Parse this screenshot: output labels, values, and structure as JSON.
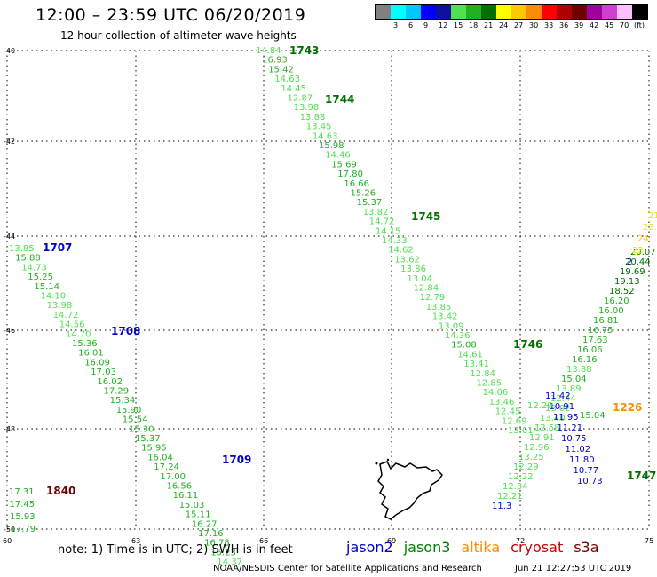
{
  "header": {
    "title": "12:00 – 23:59 UTC 06/20/2019",
    "subtitle": "12 hour collection of altimeter wave heights"
  },
  "color_scale": {
    "unit": "(ft)",
    "bins": [
      {
        "color": "#808080",
        "label": ""
      },
      {
        "color": "#00ffff",
        "label": "3"
      },
      {
        "color": "#00c8ff",
        "label": "6"
      },
      {
        "color": "#0000ff",
        "label": "9"
      },
      {
        "color": "#1010a0",
        "label": "12"
      },
      {
        "color": "#50e050",
        "label": "15"
      },
      {
        "color": "#20b020",
        "label": "18"
      },
      {
        "color": "#007000",
        "label": "21"
      },
      {
        "color": "#ffff00",
        "label": "24"
      },
      {
        "color": "#ffc800",
        "label": "27"
      },
      {
        "color": "#ff8c00",
        "label": "30"
      },
      {
        "color": "#ff0000",
        "label": "33"
      },
      {
        "color": "#b00000",
        "label": "36"
      },
      {
        "color": "#700000",
        "label": "39"
      },
      {
        "color": "#a000a0",
        "label": "42"
      },
      {
        "color": "#d040d0",
        "label": "45"
      },
      {
        "color": "#ffc0ff",
        "label": "70"
      },
      {
        "color": "#000000",
        "label": ""
      }
    ]
  },
  "axes": {
    "lat_labels": [
      "-40",
      "-42",
      "-44",
      "-46",
      "-48",
      "-50"
    ],
    "lon_labels": [
      "60",
      "63",
      "66",
      "69",
      "72",
      "75"
    ]
  },
  "tracks": [
    {
      "time": "1743",
      "time_color": "#007000",
      "values": [
        "14.84",
        "16.93",
        "15.42",
        "14.63",
        "14.45",
        "12.87",
        "13.98",
        "13.88",
        "13.45",
        "14.63",
        "15.98",
        "14.46",
        "15.69",
        "17.80",
        "16.66",
        "15.26",
        "15.37",
        "13.82",
        "14.72",
        "14.15",
        "14.33",
        "14.62",
        "13.62",
        "13.86",
        "13.04",
        "12.84",
        "12.79",
        "13.85",
        "13.42",
        "13.09",
        "14.36",
        "15.08",
        "14.61",
        "13.41",
        "12.84",
        "12.85",
        "14.06",
        "13.46",
        "12.45",
        "12.69",
        "13.01"
      ]
    },
    {
      "time": "1744",
      "time_color": "#007000",
      "values": []
    },
    {
      "time": "1745",
      "time_color": "#007000",
      "values": []
    },
    {
      "time": "1746",
      "time_color": "#007000",
      "values": []
    },
    {
      "time": "1707",
      "time_color": "#0000cc",
      "values": [
        "13.85",
        "15.88",
        "14.73",
        "15.25",
        "15.14",
        "14.10",
        "13.98",
        "14.72",
        "14.56",
        "14.70",
        "15.36",
        "16.01",
        "16.09",
        "17.03",
        "16.02",
        "17.29",
        "15.34",
        "15.90",
        "15.54",
        "15.30",
        "15.37",
        "15.95",
        "16.04",
        "17.24",
        "17.00",
        "16.56",
        "16.11",
        "15.03",
        "15.11",
        "16.27",
        "17.16",
        "16.78",
        "15.23",
        "14.37"
      ]
    },
    {
      "time": "1708",
      "time_color": "#0000cc",
      "values": []
    },
    {
      "time": "1709",
      "time_color": "#0000cc",
      "values": []
    },
    {
      "time": "1840",
      "time_color": "#700000",
      "values": [
        "17.31",
        "17.45",
        "15.93",
        "17.79"
      ]
    },
    {
      "time": "1226",
      "time_color": "#ff8c00",
      "values": []
    },
    {
      "time": "1747",
      "time_color": "#007000",
      "values": [
        "20.07",
        "20.44",
        "19.69",
        "19.13",
        "18.52",
        "16.20",
        "16.00",
        "16.81",
        "16.75",
        "17.63",
        "16.06",
        "16.16",
        "13.88",
        "15.04",
        "13.89",
        "12.44",
        "13.02",
        "13.40",
        "12.58",
        "12.91",
        "12.96",
        "13.25",
        "12.29",
        "12.22",
        "12.34",
        "12.21",
        "11.3"
      ]
    },
    {
      "time": "",
      "time_color": "#0000cc",
      "values": [
        "11.42",
        "10.91",
        "11.95",
        "11.21",
        "10.75",
        "11.02",
        "11.80",
        "10.77",
        "10.73"
      ]
    },
    {
      "time": "",
      "time_color": "#ff8c00",
      "values": [
        "21.08",
        "22.5",
        "24.",
        "22.",
        "2"
      ]
    },
    {
      "time": "",
      "time_color": "#50e050",
      "values": [
        "12.29",
        "15.04"
      ]
    }
  ],
  "footer": {
    "note": "note:  1) Time is in UTC;  2) SWH is in feet",
    "satellites": [
      {
        "name": "jason2",
        "color": "#0000cc"
      },
      {
        "name": "jason3",
        "color": "#008000"
      },
      {
        "name": "altika",
        "color": "#ff8c00"
      },
      {
        "name": "cryosat",
        "color": "#cc0000"
      },
      {
        "name": "s3a",
        "color": "#7a0000"
      }
    ],
    "credit": "NOAA/NESDIS Center for Satellite Applications and Research",
    "timestamp": "Jun 21 12:27:53 UTC 2019"
  }
}
